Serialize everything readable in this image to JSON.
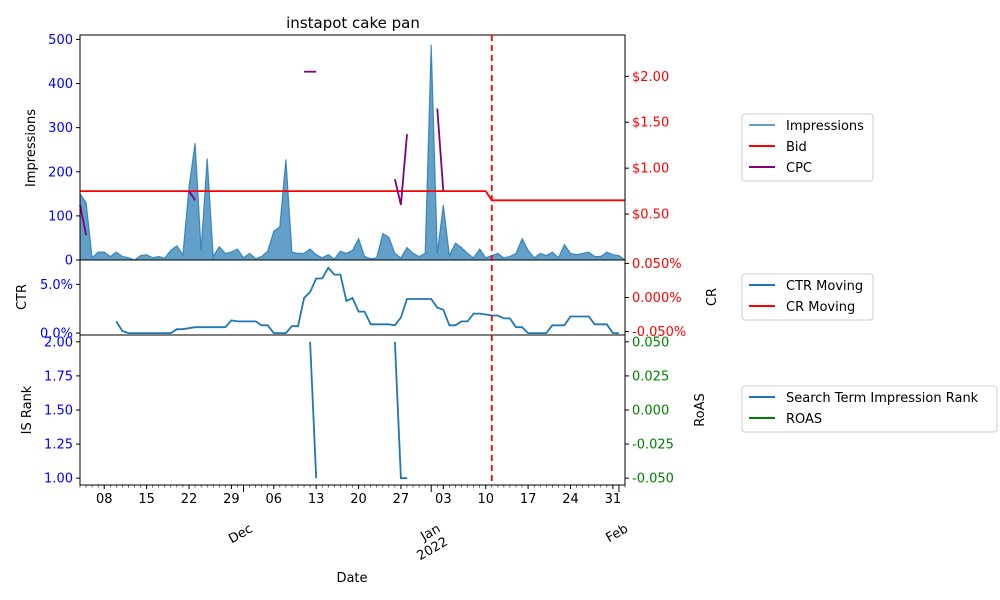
{
  "chart_data": [
    {
      "type": "area",
      "title": "instapot cake pan",
      "ylabel": "Impressions",
      "ylim": [
        0,
        510
      ],
      "y_ticks": [
        0,
        100,
        200,
        300,
        400,
        500
      ],
      "right_ylim": [
        0,
        2.45
      ],
      "right_ticks": [
        {
          "value": 0.5,
          "label": "$0.50"
        },
        {
          "value": 1.0,
          "label": "$1.00"
        },
        {
          "value": 1.5,
          "label": "$1.50"
        },
        {
          "value": 2.0,
          "label": "$2.00"
        }
      ],
      "marker_date": "2022-01-11",
      "series": [
        {
          "name": "Impressions",
          "color": "#1f77b4",
          "axis": "left",
          "points": [
            [
              "2021-11-04",
              150
            ],
            [
              "2021-11-05",
              130
            ],
            [
              "2021-11-06",
              5
            ],
            [
              "2021-11-07",
              18
            ],
            [
              "2021-11-08",
              18
            ],
            [
              "2021-11-09",
              8
            ],
            [
              "2021-11-10",
              18
            ],
            [
              "2021-11-11",
              8
            ],
            [
              "2021-11-12",
              5
            ],
            [
              "2021-11-13",
              0
            ],
            [
              "2021-11-14",
              10
            ],
            [
              "2021-11-15",
              12
            ],
            [
              "2021-11-16",
              5
            ],
            [
              "2021-11-17",
              8
            ],
            [
              "2021-11-18",
              4
            ],
            [
              "2021-11-19",
              22
            ],
            [
              "2021-11-20",
              32
            ],
            [
              "2021-11-21",
              12
            ],
            [
              "2021-11-22",
              165
            ],
            [
              "2021-11-23",
              265
            ],
            [
              "2021-11-24",
              22
            ],
            [
              "2021-11-25",
              230
            ],
            [
              "2021-11-26",
              8
            ],
            [
              "2021-11-27",
              30
            ],
            [
              "2021-11-28",
              15
            ],
            [
              "2021-11-29",
              18
            ],
            [
              "2021-11-30",
              25
            ],
            [
              "2021-12-01",
              5
            ],
            [
              "2021-12-02",
              15
            ],
            [
              "2021-12-03",
              3
            ],
            [
              "2021-12-04",
              8
            ],
            [
              "2021-12-05",
              20
            ],
            [
              "2021-12-06",
              65
            ],
            [
              "2021-12-07",
              75
            ],
            [
              "2021-12-08",
              228
            ],
            [
              "2021-12-09",
              18
            ],
            [
              "2021-12-10",
              15
            ],
            [
              "2021-12-11",
              15
            ],
            [
              "2021-12-12",
              25
            ],
            [
              "2021-12-13",
              12
            ],
            [
              "2021-12-14",
              5
            ],
            [
              "2021-12-15",
              12
            ],
            [
              "2021-12-16",
              2
            ],
            [
              "2021-12-17",
              20
            ],
            [
              "2021-12-18",
              15
            ],
            [
              "2021-12-19",
              22
            ],
            [
              "2021-12-20",
              48
            ],
            [
              "2021-12-21",
              8
            ],
            [
              "2021-12-22",
              3
            ],
            [
              "2021-12-23",
              5
            ],
            [
              "2021-12-24",
              60
            ],
            [
              "2021-12-25",
              52
            ],
            [
              "2021-12-26",
              15
            ],
            [
              "2021-12-27",
              5
            ],
            [
              "2021-12-28",
              28
            ],
            [
              "2021-12-29",
              15
            ],
            [
              "2021-12-30",
              8
            ],
            [
              "2021-12-31",
              15
            ],
            [
              "2022-01-01",
              488
            ],
            [
              "2022-01-02",
              15
            ],
            [
              "2022-01-03",
              125
            ],
            [
              "2022-01-04",
              10
            ],
            [
              "2022-01-05",
              38
            ],
            [
              "2022-01-06",
              28
            ],
            [
              "2022-01-07",
              15
            ],
            [
              "2022-01-08",
              5
            ],
            [
              "2022-01-09",
              25
            ],
            [
              "2022-01-10",
              5
            ],
            [
              "2022-01-11",
              10
            ],
            [
              "2022-01-12",
              15
            ],
            [
              "2022-01-13",
              5
            ],
            [
              "2022-01-14",
              8
            ],
            [
              "2022-01-15",
              15
            ],
            [
              "2022-01-16",
              48
            ],
            [
              "2022-01-17",
              22
            ],
            [
              "2022-01-18",
              5
            ],
            [
              "2022-01-19",
              15
            ],
            [
              "2022-01-20",
              10
            ],
            [
              "2022-01-21",
              18
            ],
            [
              "2022-01-22",
              5
            ],
            [
              "2022-01-23",
              35
            ],
            [
              "2022-01-24",
              15
            ],
            [
              "2022-01-25",
              12
            ],
            [
              "2022-01-26",
              15
            ],
            [
              "2022-01-27",
              18
            ],
            [
              "2022-01-28",
              8
            ],
            [
              "2022-01-29",
              8
            ],
            [
              "2022-01-30",
              18
            ],
            [
              "2022-01-31",
              12
            ],
            [
              "2022-02-01",
              10
            ],
            [
              "2022-02-02",
              0
            ]
          ]
        },
        {
          "name": "Bid",
          "color": "#ff0000",
          "axis": "right",
          "points": [
            [
              "2021-11-04",
              0.75
            ],
            [
              "2022-01-10",
              0.75
            ],
            [
              "2022-01-11",
              0.65
            ],
            [
              "2022-02-02",
              0.65
            ]
          ]
        },
        {
          "name": "CPC",
          "color": "#800080",
          "axis": "right",
          "segments": [
            [
              [
                "2021-11-04",
                0.6
              ],
              [
                "2021-11-05",
                0.27
              ]
            ],
            [
              [
                "2021-11-22",
                0.75
              ],
              [
                "2021-11-23",
                0.65
              ]
            ],
            [
              [
                "2021-12-11",
                2.05
              ],
              [
                "2021-12-13",
                2.05
              ]
            ],
            [
              [
                "2021-12-26",
                0.88
              ],
              [
                "2021-12-27",
                0.6
              ],
              [
                "2021-12-28",
                1.37
              ]
            ],
            [
              [
                "2022-01-02",
                1.65
              ],
              [
                "2022-01-03",
                0.75
              ]
            ]
          ]
        }
      ]
    },
    {
      "type": "line",
      "ylabel": "CTR",
      "right_ylabel": "CR",
      "ylim": [
        -0.002,
        0.075
      ],
      "y_ticks": [
        {
          "value": 0,
          "label": "0.0%"
        },
        {
          "value": 0.05,
          "label": "5.0%"
        }
      ],
      "right_ylim": [
        -0.055,
        0.055
      ],
      "right_ticks": [
        {
          "value": -0.05,
          "label": "-0.050%"
        },
        {
          "value": 0.0,
          "label": "0.000%"
        },
        {
          "value": 0.05,
          "label": "0.050%"
        }
      ],
      "series": [
        {
          "name": "CTR Moving",
          "color": "#1f77b4",
          "points": [
            [
              "2021-11-10",
              0.012
            ],
            [
              "2021-11-11",
              0.002
            ],
            [
              "2021-11-12",
              0.0
            ],
            [
              "2021-11-13",
              0.0
            ],
            [
              "2021-11-14",
              0.0
            ],
            [
              "2021-11-15",
              0.0
            ],
            [
              "2021-11-16",
              0.0
            ],
            [
              "2021-11-17",
              0.0
            ],
            [
              "2021-11-18",
              0.0
            ],
            [
              "2021-11-19",
              0.0
            ],
            [
              "2021-11-20",
              0.004
            ],
            [
              "2021-11-21",
              0.004
            ],
            [
              "2021-11-22",
              0.005
            ],
            [
              "2021-11-23",
              0.006
            ],
            [
              "2021-11-24",
              0.006
            ],
            [
              "2021-11-25",
              0.006
            ],
            [
              "2021-11-26",
              0.006
            ],
            [
              "2021-11-27",
              0.006
            ],
            [
              "2021-11-28",
              0.006
            ],
            [
              "2021-11-29",
              0.013
            ],
            [
              "2021-11-30",
              0.012
            ],
            [
              "2021-12-01",
              0.012
            ],
            [
              "2021-12-02",
              0.012
            ],
            [
              "2021-12-03",
              0.012
            ],
            [
              "2021-12-04",
              0.008
            ],
            [
              "2021-12-05",
              0.008
            ],
            [
              "2021-12-06",
              0.0
            ],
            [
              "2021-12-07",
              0.0
            ],
            [
              "2021-12-08",
              0.0
            ],
            [
              "2021-12-09",
              0.007
            ],
            [
              "2021-12-10",
              0.007
            ],
            [
              "2021-12-11",
              0.036
            ],
            [
              "2021-12-12",
              0.042
            ],
            [
              "2021-12-13",
              0.056
            ],
            [
              "2021-12-14",
              0.056
            ],
            [
              "2021-12-15",
              0.067
            ],
            [
              "2021-12-16",
              0.06
            ],
            [
              "2021-12-17",
              0.06
            ],
            [
              "2021-12-18",
              0.033
            ],
            [
              "2021-12-19",
              0.036
            ],
            [
              "2021-12-20",
              0.022
            ],
            [
              "2021-12-21",
              0.022
            ],
            [
              "2021-12-22",
              0.009
            ],
            [
              "2021-12-23",
              0.009
            ],
            [
              "2021-12-24",
              0.009
            ],
            [
              "2021-12-25",
              0.009
            ],
            [
              "2021-12-26",
              0.008
            ],
            [
              "2021-12-27",
              0.016
            ],
            [
              "2021-12-28",
              0.035
            ],
            [
              "2021-12-29",
              0.035
            ],
            [
              "2021-12-30",
              0.035
            ],
            [
              "2021-12-31",
              0.035
            ],
            [
              "2022-01-01",
              0.035
            ],
            [
              "2022-01-02",
              0.026
            ],
            [
              "2022-01-03",
              0.024
            ],
            [
              "2022-01-04",
              0.008
            ],
            [
              "2022-01-05",
              0.008
            ],
            [
              "2022-01-06",
              0.012
            ],
            [
              "2022-01-07",
              0.012
            ],
            [
              "2022-01-08",
              0.02
            ],
            [
              "2022-01-09",
              0.02
            ],
            [
              "2022-01-10",
              0.019
            ],
            [
              "2022-01-11",
              0.018
            ],
            [
              "2022-01-12",
              0.018
            ],
            [
              "2022-01-13",
              0.015
            ],
            [
              "2022-01-14",
              0.015
            ],
            [
              "2022-01-15",
              0.006
            ],
            [
              "2022-01-16",
              0.006
            ],
            [
              "2022-01-17",
              0.0
            ],
            [
              "2022-01-18",
              0.0
            ],
            [
              "2022-01-19",
              0.0
            ],
            [
              "2022-01-20",
              0.0
            ],
            [
              "2022-01-21",
              0.008
            ],
            [
              "2022-01-22",
              0.008
            ],
            [
              "2022-01-23",
              0.008
            ],
            [
              "2022-01-24",
              0.017
            ],
            [
              "2022-01-25",
              0.017
            ],
            [
              "2022-01-26",
              0.017
            ],
            [
              "2022-01-27",
              0.017
            ],
            [
              "2022-01-28",
              0.009
            ],
            [
              "2022-01-29",
              0.009
            ],
            [
              "2022-01-30",
              0.009
            ],
            [
              "2022-01-31",
              0.0
            ],
            [
              "2022-02-01",
              0.0
            ]
          ]
        },
        {
          "name": "CR Moving",
          "color": "#ff0000",
          "points": []
        }
      ]
    },
    {
      "type": "line",
      "ylabel": "IS Rank",
      "right_ylabel": "RoAS",
      "ylim": [
        0.95,
        2.05
      ],
      "y_ticks": [
        1.0,
        1.25,
        1.5,
        1.75,
        2.0
      ],
      "y_tick_labels": [
        "1.00",
        "1.25",
        "1.50",
        "1.75",
        "2.00"
      ],
      "right_ylim": [
        -0.055,
        0.055
      ],
      "right_ticks": [
        {
          "value": -0.05,
          "label": "-0.050"
        },
        {
          "value": -0.025,
          "label": "-0.025"
        },
        {
          "value": 0.0,
          "label": "0.000"
        },
        {
          "value": 0.025,
          "label": "0.025"
        },
        {
          "value": 0.05,
          "label": "0.050"
        }
      ],
      "xlabel": "Date",
      "x_range": [
        "2021-11-04",
        "2022-02-02"
      ],
      "x_minor_ticks": [
        {
          "date": "2021-11-08",
          "label": "08"
        },
        {
          "date": "2021-11-15",
          "label": "15"
        },
        {
          "date": "2021-11-22",
          "label": "22"
        },
        {
          "date": "2021-11-29",
          "label": "29"
        },
        {
          "date": "2021-12-06",
          "label": "06"
        },
        {
          "date": "2021-12-13",
          "label": "13"
        },
        {
          "date": "2021-12-20",
          "label": "20"
        },
        {
          "date": "2021-12-27",
          "label": "27"
        },
        {
          "date": "2022-01-03",
          "label": "03"
        },
        {
          "date": "2022-01-10",
          "label": "10"
        },
        {
          "date": "2022-01-17",
          "label": "17"
        },
        {
          "date": "2022-01-24",
          "label": "24"
        },
        {
          "date": "2022-01-31",
          "label": "31"
        }
      ],
      "x_major_ticks": [
        {
          "date": "2021-12-01",
          "label": "Dec"
        },
        {
          "date": "2022-01-01",
          "label": "Jan",
          "label2": "2022"
        },
        {
          "date": "2022-02-01",
          "label": "Feb"
        }
      ],
      "series": [
        {
          "name": "Search Term Impression Rank",
          "color": "#1f77b4",
          "segments": [
            [
              [
                "2021-12-12",
                2.0
              ],
              [
                "2021-12-13",
                1.0
              ]
            ],
            [
              [
                "2021-12-26",
                2.0
              ],
              [
                "2021-12-27",
                1.0
              ],
              [
                "2021-12-28",
                1.0
              ]
            ]
          ]
        },
        {
          "name": "ROAS",
          "color": "#008000",
          "points": []
        }
      ]
    }
  ],
  "colors": {
    "left_axis": "#0000ff",
    "top_right_axis": "#ff0000",
    "mid_right_axis": "#ff0000",
    "bottom_right_axis": "#008000",
    "marker_line": "#ff0000",
    "area_fill": "#1f77b4"
  }
}
